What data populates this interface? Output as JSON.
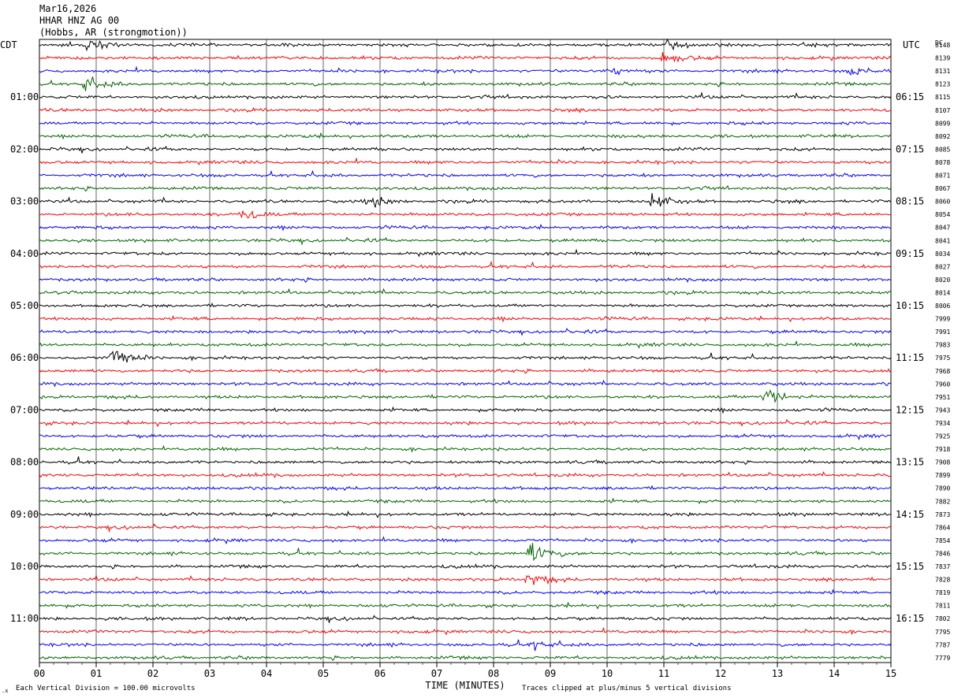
{
  "header": {
    "date": "Mar16,2026",
    "station": "HHAR HNZ AG 00",
    "location": "(Hobbs, AR (strongmotion))"
  },
  "timezones": {
    "left": "CDT",
    "right": "UTC",
    "dc_label": "DC"
  },
  "footer": {
    "xlabel": "TIME (MINUTES)",
    "scale_note": "Each Vertical Division =  100.00 microvolts",
    "clip_note": "Traces clipped at plus/minus 5 vertical divisions"
  },
  "colors": {
    "trace_cycle": [
      "#000000",
      "#ff0000",
      "#0000ff",
      "#006400"
    ],
    "grid": "#000000"
  },
  "chart_data": {
    "type": "line",
    "title": "HHAR HNZ AG 00",
    "xlabel": "TIME (MINUTES)",
    "x_ticks": [
      "00",
      "01",
      "02",
      "03",
      "04",
      "05",
      "06",
      "07",
      "08",
      "09",
      "10",
      "11",
      "12",
      "13",
      "14",
      "15"
    ],
    "xlim": [
      0,
      15
    ],
    "grid": true,
    "left_time_labels": [
      "01:00",
      "02:00",
      "03:00",
      "04:00",
      "05:00",
      "06:00",
      "07:00",
      "08:00",
      "09:00",
      "10:00",
      "11:00"
    ],
    "right_time_labels": [
      "06:15",
      "07:15",
      "08:15",
      "09:15",
      "10:15",
      "11:15",
      "12:15",
      "13:15",
      "14:15",
      "15:15",
      "16:15"
    ],
    "dc_offsets": [
      8148,
      8139,
      8131,
      8123,
      8115,
      8107,
      8099,
      8092,
      8085,
      8078,
      8071,
      8067,
      8060,
      8054,
      8047,
      8041,
      8034,
      8027,
      8020,
      8014,
      8006,
      7999,
      7991,
      7983,
      7975,
      7968,
      7960,
      7951,
      7943,
      7934,
      7925,
      7918,
      7908,
      7899,
      7890,
      7882,
      7873,
      7864,
      7854,
      7846,
      7837,
      7828,
      7819,
      7811,
      7802,
      7795,
      7787,
      7779
    ],
    "events": [
      {
        "trace": 0,
        "minute": 0.85,
        "amp": 2.0
      },
      {
        "trace": 0,
        "minute": 11.0,
        "amp": 2.5
      },
      {
        "trace": 1,
        "minute": 11.0,
        "amp": 3.0
      },
      {
        "trace": 2,
        "minute": 10.0,
        "amp": 2.0
      },
      {
        "trace": 2,
        "minute": 14.3,
        "amp": 2.0
      },
      {
        "trace": 3,
        "minute": 0.8,
        "amp": 3.0
      },
      {
        "trace": 12,
        "minute": 10.8,
        "amp": 3.5
      },
      {
        "trace": 12,
        "minute": 5.8,
        "amp": 2.5
      },
      {
        "trace": 13,
        "minute": 3.6,
        "amp": 2.5
      },
      {
        "trace": 24,
        "minute": 1.3,
        "amp": 5.0
      },
      {
        "trace": 27,
        "minute": 12.8,
        "amp": 5.0
      },
      {
        "trace": 39,
        "minute": 8.65,
        "amp": 5.0
      },
      {
        "trace": 41,
        "minute": 8.6,
        "amp": 3.0
      },
      {
        "trace": 46,
        "minute": 8.7,
        "amp": 2.0
      }
    ]
  }
}
